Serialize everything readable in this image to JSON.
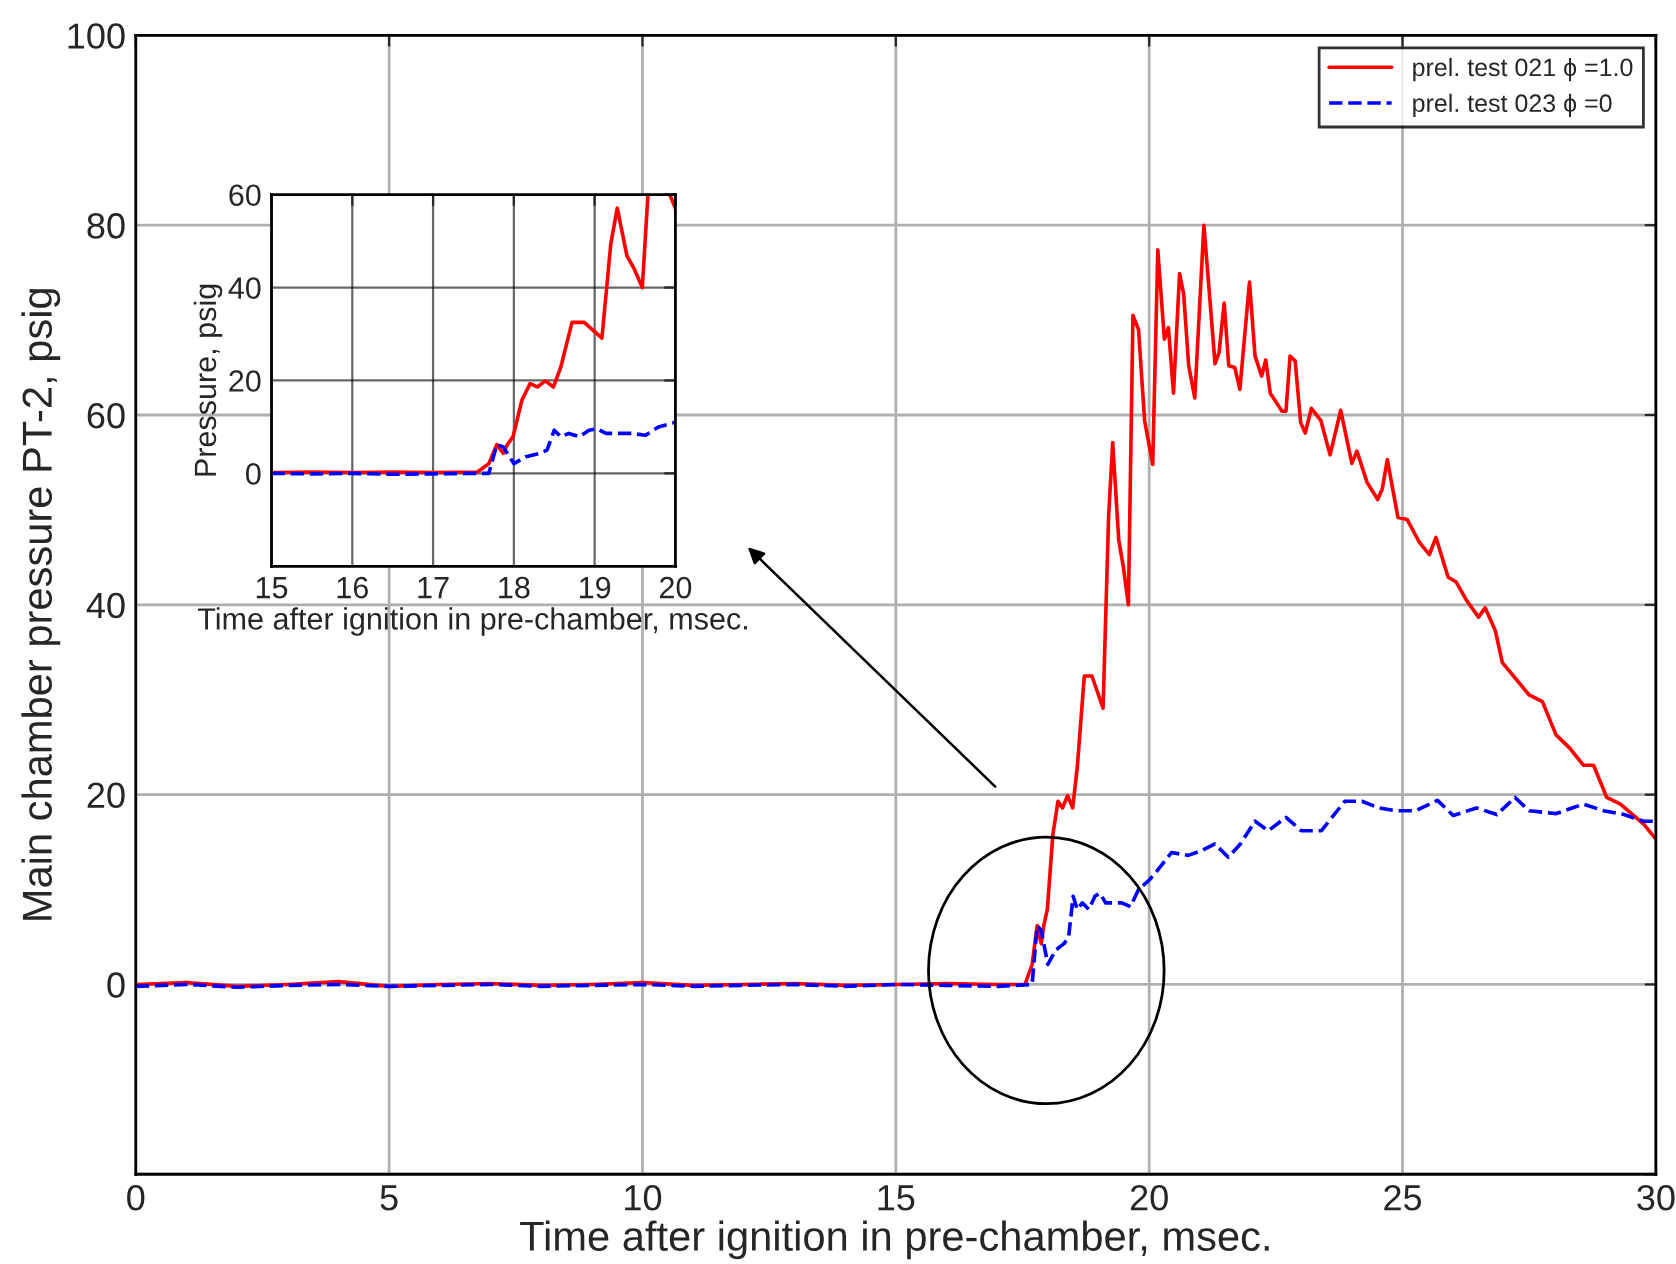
{
  "chart_data": [
    {
      "type": "line",
      "xlabel": "Time after ignition in pre-chamber, msec.",
      "ylabel": "Main chamber pressure PT-2, psig",
      "xlim": [
        0,
        30
      ],
      "ylim": [
        -20,
        100
      ],
      "xticks": [
        0,
        5,
        10,
        15,
        20,
        25,
        30
      ],
      "yticks": [
        {
          "value": -20,
          "label": null
        },
        0,
        20,
        40,
        60,
        80,
        100
      ],
      "grid": true,
      "legend": "top right",
      "series": [
        {
          "name": "prel. test 021 ϕ =1.0",
          "color": "#ff0000",
          "line_style": "solid",
          "x": [
            0,
            1,
            2,
            3,
            4,
            5,
            6,
            7,
            8,
            9,
            10,
            11,
            12,
            13,
            14,
            15,
            16,
            17,
            17.55,
            17.69,
            17.79,
            17.87,
            17.92,
            17.99,
            18.1,
            18.2,
            18.29,
            18.39,
            18.49,
            18.58,
            18.72,
            18.87,
            19.09,
            19.2,
            19.28,
            19.4,
            19.49,
            19.59,
            19.68,
            19.79,
            19.91,
            20.07,
            20.17,
            20.3,
            20.38,
            20.48,
            20.6,
            20.68,
            20.78,
            20.9,
            21.08,
            21.3,
            21.38,
            21.48,
            21.57,
            21.69,
            21.79,
            21.98,
            22.09,
            22.22,
            22.3,
            22.39,
            22.62,
            22.7,
            22.78,
            22.88,
            22.99,
            23.08,
            23.2,
            23.39,
            23.57,
            23.78,
            24.0,
            24.1,
            24.3,
            24.51,
            24.6,
            24.7,
            24.91,
            25.09,
            25.33,
            25.53,
            25.66,
            25.9,
            26.06,
            26.26,
            26.5,
            26.63,
            26.83,
            26.97,
            27.5,
            27.76,
            28.03,
            28.3,
            28.57,
            28.77,
            29.03,
            29.3,
            29.76,
            30
          ],
          "values": [
            0,
            0.2,
            -0.2,
            0,
            0.3,
            -0.2,
            0,
            0.1,
            -0.1,
            0,
            0.2,
            -0.1,
            0,
            0.1,
            -0.1,
            0,
            0.1,
            0,
            0,
            2.1,
            6.2,
            4.3,
            6.2,
            7.9,
            15.8,
            19.3,
            18.6,
            19.9,
            18.6,
            22.8,
            32.5,
            32.5,
            29.1,
            49.4,
            57.1,
            46.8,
            44,
            40,
            70.5,
            69,
            59.4,
            54.8,
            77.4,
            68,
            69.2,
            62.3,
            74.9,
            72.8,
            65.2,
            61.8,
            80,
            65.4,
            66.6,
            71.8,
            65.2,
            65,
            62.7,
            74,
            66.2,
            64.1,
            65.8,
            62.3,
            60.4,
            60.4,
            66.2,
            65.7,
            59.2,
            58.1,
            60.7,
            59.4,
            55.8,
            60.5,
            54.9,
            56.2,
            52.9,
            51.1,
            52.2,
            55.3,
            49.2,
            49,
            46.6,
            45.3,
            47.1,
            42.9,
            42.4,
            40.5,
            38.7,
            39.7,
            37.3,
            33.9,
            30.5,
            29.8,
            26.3,
            24.9,
            23.1,
            23.1,
            19.7,
            19,
            16.9,
            15.3
          ]
        },
        {
          "name": "prel. test 023 ϕ =0",
          "color": "#0000ff",
          "line_style": "dashed",
          "x": [
            0,
            1,
            2,
            3,
            4,
            5,
            6,
            7,
            8,
            9,
            10,
            11,
            12,
            13,
            14,
            15,
            16,
            17,
            17.69,
            17.79,
            17.87,
            17.92,
            18.0,
            18.15,
            18.32,
            18.41,
            18.5,
            18.58,
            18.68,
            18.81,
            18.93,
            19.03,
            19.14,
            19.46,
            19.63,
            19.79,
            20,
            20.1,
            20.44,
            20.77,
            21.03,
            21.3,
            21.56,
            21.8,
            22.09,
            22.35,
            22.7,
            23.0,
            23.4,
            23.86,
            24.2,
            24.53,
            24.87,
            25.26,
            25.69,
            26,
            26.46,
            26.86,
            27.22,
            27.5,
            28.03,
            28.57,
            28.97,
            29.37,
            29.76,
            30
          ],
          "values": [
            -0.2,
            0,
            -0.3,
            -0.1,
            0,
            -0.2,
            -0.1,
            0,
            -0.2,
            -0.1,
            0,
            -0.2,
            -0.1,
            0,
            -0.2,
            0,
            -0.1,
            -0.2,
            0,
            6.2,
            5.7,
            4.3,
            2.1,
            3.6,
            4.3,
            5,
            9.3,
            7.9,
            8.6,
            7.9,
            9.3,
            9.6,
            8.6,
            8.6,
            8.2,
            10,
            11,
            11.6,
            13.9,
            13.6,
            14.1,
            14.8,
            13.4,
            14.8,
            17.2,
            16.2,
            17.6,
            16.2,
            16.2,
            19.3,
            19.3,
            18.6,
            18.3,
            18.3,
            19.4,
            17.8,
            18.6,
            17.9,
            19.7,
            18.3,
            18,
            19,
            18.3,
            17.9,
            17.2,
            17.2
          ]
        }
      ]
    },
    {
      "type": "line",
      "xlabel": "Time after ignition in pre-chamber, msec.",
      "ylabel": "Pressure, psig",
      "xlim": [
        15,
        20
      ],
      "ylim": [
        -20,
        60
      ],
      "xticks": [
        15,
        16,
        17,
        18,
        19,
        20
      ],
      "yticks": [
        0,
        20,
        40,
        60
      ],
      "grid": true,
      "series": [
        {
          "color": "#ff0000",
          "line_style": "solid",
          "x": [
            15,
            15.5,
            16,
            16.5,
            17,
            17.55,
            17.69,
            17.79,
            17.87,
            17.92,
            17.99,
            18.1,
            18.2,
            18.29,
            18.39,
            18.49,
            18.58,
            18.72,
            18.87,
            19.09,
            19.2,
            19.28,
            19.4,
            19.49,
            19.59,
            19.66,
            19.8,
            19.93,
            20
          ],
          "values": [
            0.2,
            0.3,
            0.2,
            0.3,
            0.2,
            0.3,
            2.1,
            6.2,
            4.3,
            6.2,
            7.9,
            15.8,
            19.3,
            18.6,
            19.9,
            18.6,
            22.8,
            32.5,
            32.5,
            29.1,
            49.4,
            57.1,
            46.8,
            44,
            40,
            60,
            null,
            60,
            57
          ]
        },
        {
          "color": "#0000ff",
          "line_style": "dashed",
          "x": [
            15,
            15.5,
            16,
            16.5,
            17,
            17.6,
            17.69,
            17.79,
            17.87,
            17.92,
            18.0,
            18.15,
            18.32,
            18.41,
            18.5,
            18.58,
            18.68,
            18.81,
            18.93,
            19.03,
            19.14,
            19.46,
            19.63,
            19.79,
            20
          ],
          "values": [
            0,
            -0.1,
            0,
            -0.2,
            -0.1,
            0,
            0,
            6.2,
            5.7,
            4.3,
            2.1,
            3.6,
            4.3,
            5,
            9.3,
            7.9,
            8.6,
            7.9,
            9.3,
            9.6,
            8.6,
            8.6,
            8.2,
            10,
            11
          ]
        }
      ]
    }
  ]
}
